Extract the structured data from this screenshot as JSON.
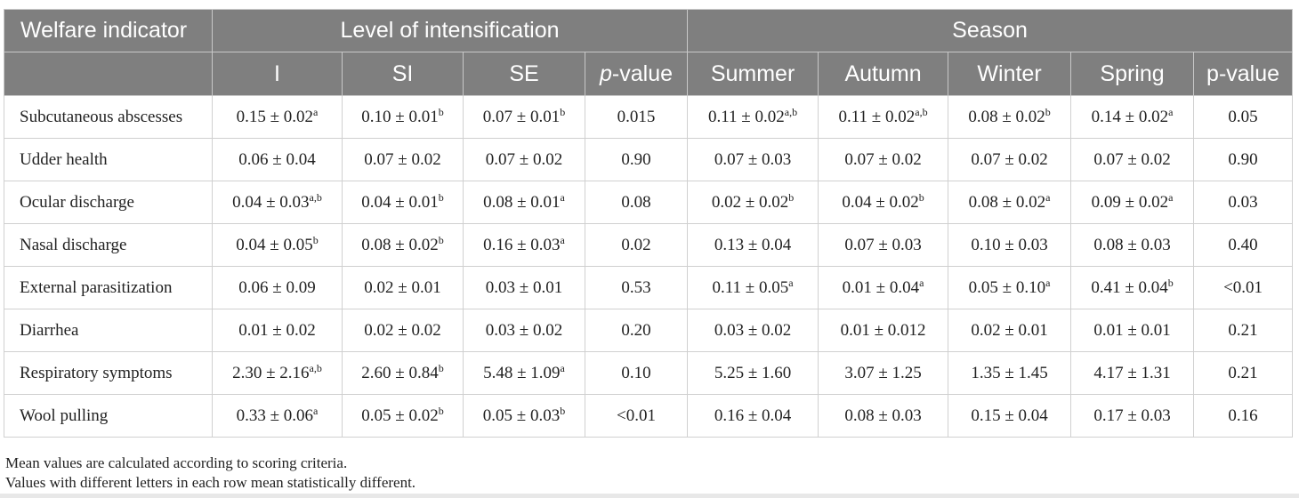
{
  "table": {
    "header": {
      "indicator_label": "Welfare indicator",
      "group_intensification": "Level of intensification",
      "group_season": "Season",
      "intensification_cols": [
        "I",
        "SI",
        "SE"
      ],
      "pvalue_intensification_italic": "p",
      "pvalue_intensification_rest": "-value",
      "season_cols": [
        "Summer",
        "Autumn",
        "Winter",
        "Spring"
      ],
      "pvalue_season": "p-value"
    },
    "rows": [
      {
        "indicator": "Subcutaneous abscesses",
        "cells": [
          {
            "value": "0.15 ± 0.02",
            "sup": "a"
          },
          {
            "value": "0.10 ± 0.01",
            "sup": "b"
          },
          {
            "value": "0.07 ± 0.01",
            "sup": "b"
          },
          {
            "value": "0.015",
            "sup": ""
          },
          {
            "value": "0.11 ± 0.02",
            "sup": "a,b"
          },
          {
            "value": "0.11 ± 0.02",
            "sup": "a,b"
          },
          {
            "value": "0.08 ± 0.02",
            "sup": "b"
          },
          {
            "value": "0.14 ± 0.02",
            "sup": "a"
          },
          {
            "value": "0.05",
            "sup": ""
          }
        ]
      },
      {
        "indicator": "Udder health",
        "cells": [
          {
            "value": "0.06 ± 0.04",
            "sup": ""
          },
          {
            "value": "0.07 ± 0.02",
            "sup": ""
          },
          {
            "value": "0.07 ± 0.02",
            "sup": ""
          },
          {
            "value": "0.90",
            "sup": ""
          },
          {
            "value": "0.07 ± 0.03",
            "sup": ""
          },
          {
            "value": "0.07 ± 0.02",
            "sup": ""
          },
          {
            "value": "0.07 ± 0.02",
            "sup": ""
          },
          {
            "value": "0.07 ± 0.02",
            "sup": ""
          },
          {
            "value": "0.90",
            "sup": ""
          }
        ]
      },
      {
        "indicator": "Ocular discharge",
        "cells": [
          {
            "value": "0.04 ± 0.03",
            "sup": "a,b"
          },
          {
            "value": "0.04 ± 0.01",
            "sup": "b"
          },
          {
            "value": "0.08 ± 0.01",
            "sup": "a"
          },
          {
            "value": "0.08",
            "sup": ""
          },
          {
            "value": "0.02 ± 0.02",
            "sup": "b"
          },
          {
            "value": "0.04 ± 0.02",
            "sup": "b"
          },
          {
            "value": "0.08 ± 0.02",
            "sup": "a"
          },
          {
            "value": "0.09 ± 0.02",
            "sup": "a"
          },
          {
            "value": "0.03",
            "sup": ""
          }
        ]
      },
      {
        "indicator": "Nasal discharge",
        "cells": [
          {
            "value": "0.04 ± 0.05",
            "sup": "b"
          },
          {
            "value": "0.08 ± 0.02",
            "sup": "b"
          },
          {
            "value": "0.16 ± 0.03",
            "sup": "a"
          },
          {
            "value": "0.02",
            "sup": ""
          },
          {
            "value": "0.13 ± 0.04",
            "sup": ""
          },
          {
            "value": "0.07 ± 0.03",
            "sup": ""
          },
          {
            "value": "0.10 ± 0.03",
            "sup": ""
          },
          {
            "value": "0.08 ± 0.03",
            "sup": ""
          },
          {
            "value": "0.40",
            "sup": ""
          }
        ]
      },
      {
        "indicator": "External parasitization",
        "cells": [
          {
            "value": "0.06 ± 0.09",
            "sup": ""
          },
          {
            "value": "0.02 ± 0.01",
            "sup": ""
          },
          {
            "value": "0.03 ± 0.01",
            "sup": ""
          },
          {
            "value": "0.53",
            "sup": ""
          },
          {
            "value": "0.11 ± 0.05",
            "sup": "a"
          },
          {
            "value": "0.01 ± 0.04",
            "sup": "a"
          },
          {
            "value": "0.05 ± 0.10",
            "sup": "a"
          },
          {
            "value": "0.41 ± 0.04",
            "sup": "b"
          },
          {
            "value": "<0.01",
            "sup": ""
          }
        ]
      },
      {
        "indicator": "Diarrhea",
        "cells": [
          {
            "value": "0.01 ± 0.02",
            "sup": ""
          },
          {
            "value": "0.02 ± 0.02",
            "sup": ""
          },
          {
            "value": "0.03 ± 0.02",
            "sup": ""
          },
          {
            "value": "0.20",
            "sup": ""
          },
          {
            "value": "0.03 ± 0.02",
            "sup": ""
          },
          {
            "value": "0.01 ± 0.012",
            "sup": ""
          },
          {
            "value": "0.02 ± 0.01",
            "sup": ""
          },
          {
            "value": "0.01 ± 0.01",
            "sup": ""
          },
          {
            "value": "0.21",
            "sup": ""
          }
        ]
      },
      {
        "indicator": "Respiratory symptoms",
        "cells": [
          {
            "value": "2.30 ± 2.16",
            "sup": "a,b"
          },
          {
            "value": "2.60 ± 0.84",
            "sup": "b"
          },
          {
            "value": "5.48 ± 1.09",
            "sup": "a"
          },
          {
            "value": "0.10",
            "sup": ""
          },
          {
            "value": "5.25 ± 1.60",
            "sup": ""
          },
          {
            "value": "3.07 ± 1.25",
            "sup": ""
          },
          {
            "value": "1.35 ± 1.45",
            "sup": ""
          },
          {
            "value": "4.17 ± 1.31",
            "sup": ""
          },
          {
            "value": "0.21",
            "sup": ""
          }
        ]
      },
      {
        "indicator": "Wool pulling",
        "cells": [
          {
            "value": "0.33 ± 0.06",
            "sup": "a"
          },
          {
            "value": "0.05 ± 0.02",
            "sup": "b"
          },
          {
            "value": "0.05 ± 0.03",
            "sup": "b"
          },
          {
            "value": "<0.01",
            "sup": ""
          },
          {
            "value": "0.16 ± 0.04",
            "sup": ""
          },
          {
            "value": "0.08 ± 0.03",
            "sup": ""
          },
          {
            "value": "0.15 ± 0.04",
            "sup": ""
          },
          {
            "value": "0.17 ± 0.03",
            "sup": ""
          },
          {
            "value": "0.16",
            "sup": ""
          }
        ]
      }
    ],
    "footnotes": [
      "Mean values are calculated according to scoring criteria.",
      "Values with different letters in each row mean statistically different."
    ]
  }
}
